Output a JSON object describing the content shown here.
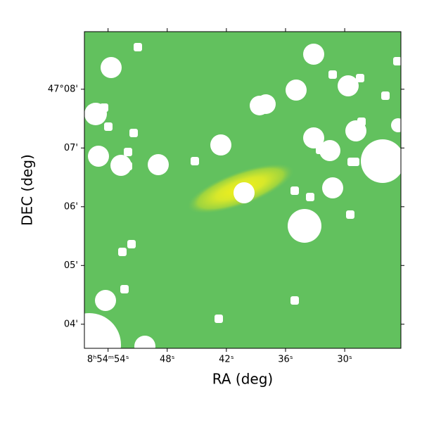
{
  "chart_data": {
    "type": "image",
    "xlabel": "RA (deg)",
    "ylabel": "DEC (deg)",
    "xlim": [
      56.4,
      24.3
    ],
    "xticks": [
      {
        "value": 54,
        "label": "8ʰ54ᵐ54ˢ"
      },
      {
        "value": 48,
        "label": "48ˢ"
      },
      {
        "value": 42,
        "label": "42ˢ"
      },
      {
        "value": 36,
        "label": "36ˢ"
      },
      {
        "value": 30,
        "label": "30ˢ"
      }
    ],
    "ylim": [
      3.59,
      8.98
    ],
    "yticks": [
      {
        "value": 8,
        "label": "47°08'"
      },
      {
        "value": 7,
        "label": "07'"
      },
      {
        "value": 6,
        "label": "06'"
      },
      {
        "value": 5,
        "label": "05'"
      },
      {
        "value": 4,
        "label": "04'"
      }
    ]
  }
}
